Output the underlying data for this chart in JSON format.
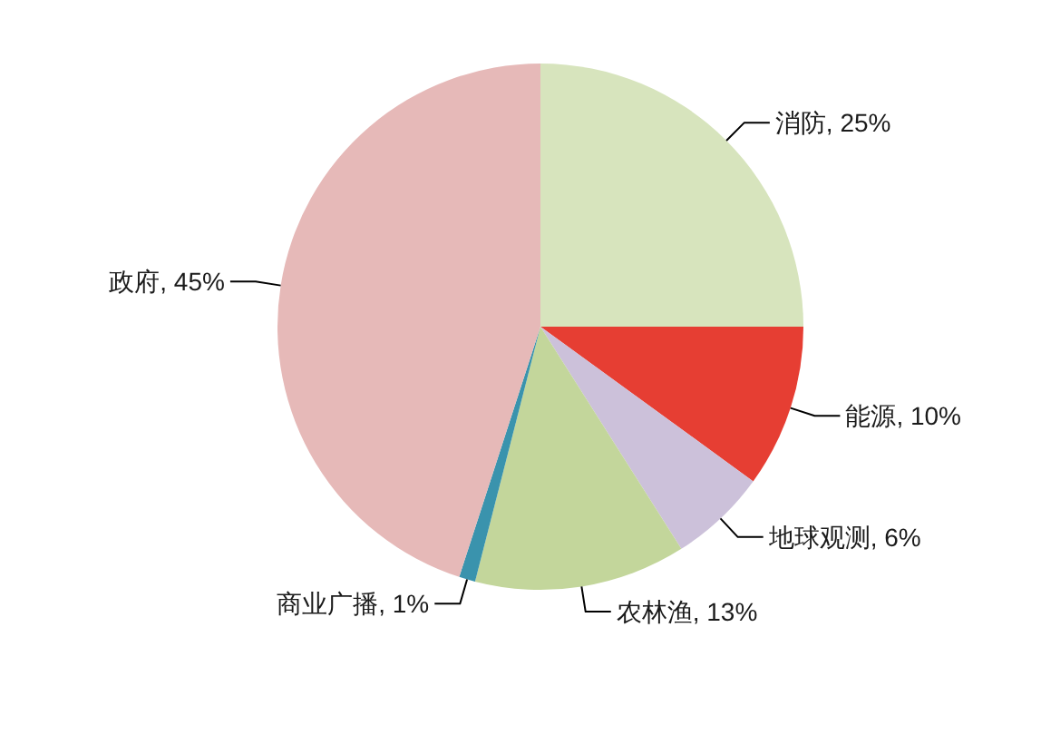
{
  "chart_data": {
    "type": "pie",
    "categories": [
      "消防",
      "能源",
      "地球观测",
      "农林渔",
      "商业广播",
      "政府"
    ],
    "values": [
      25,
      10,
      6,
      13,
      1,
      45
    ],
    "colors": [
      "#d7e4bd",
      "#e63e33",
      "#ccc1da",
      "#c3d69b",
      "#3a93ad",
      "#e6b9b8"
    ],
    "value_labels": [
      "25%",
      "10%",
      "6%",
      "13%",
      "1%",
      "45%"
    ]
  }
}
